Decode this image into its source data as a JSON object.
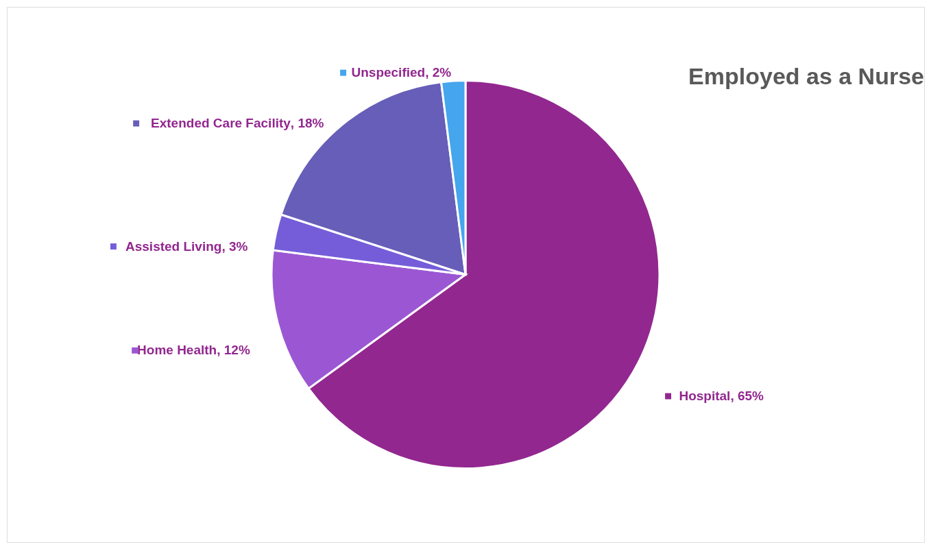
{
  "chart_data": {
    "type": "pie",
    "title": "Employed as a Nurse",
    "categories": [
      "Hospital",
      "Home Health",
      "Assisted Living",
      "Extended Care Facility",
      "Unspecified"
    ],
    "values": [
      65,
      12,
      3,
      18,
      2
    ],
    "value_labels": [
      ", 65%",
      ", 12%",
      ", 3%",
      ", 18%",
      ", 2%"
    ],
    "colors": [
      "#92278f",
      "#9b57d3",
      "#755dd9",
      "#665eb8",
      "#45a5ed"
    ],
    "legend": "left"
  }
}
